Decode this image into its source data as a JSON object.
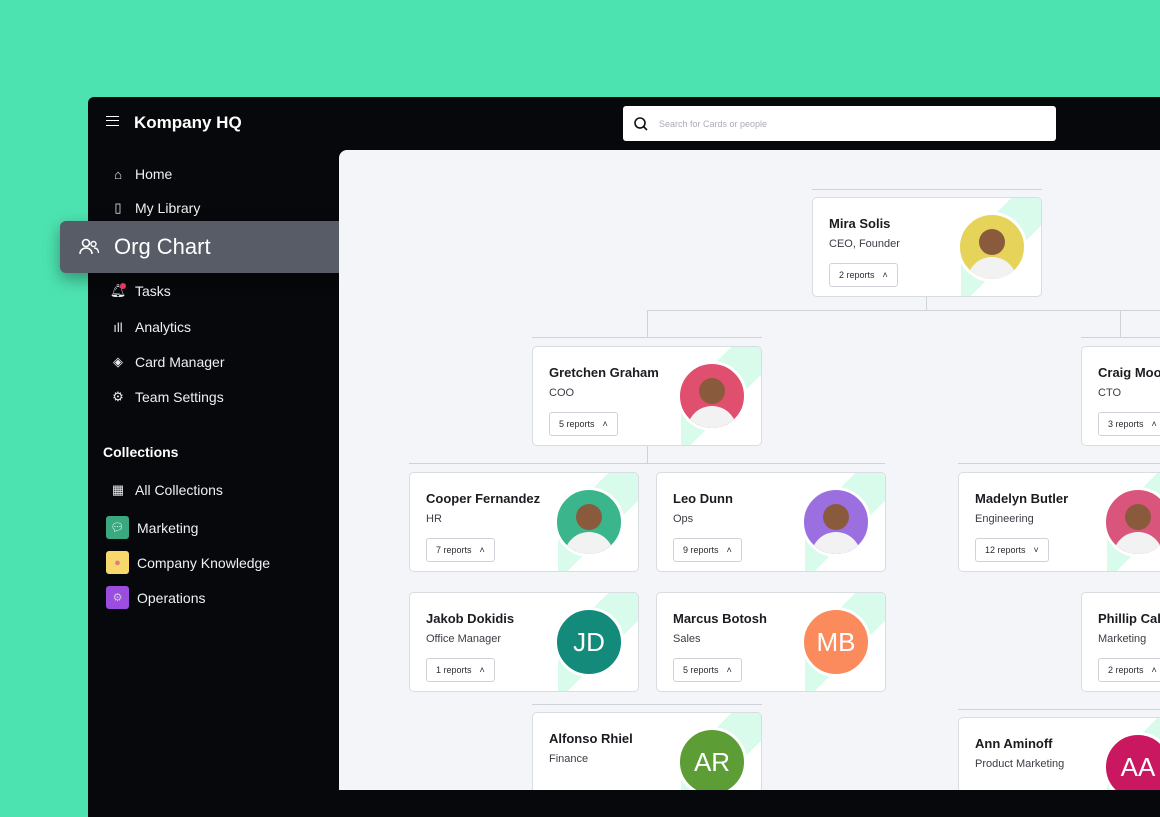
{
  "app": {
    "title": "Kompany HQ"
  },
  "search": {
    "placeholder": "Search for Cards or people"
  },
  "sidebar": {
    "items": [
      {
        "label": "Home",
        "icon": "home-icon"
      },
      {
        "label": "My Library",
        "icon": "bookmark-icon"
      },
      {
        "label": "Org Chart",
        "icon": "users-icon",
        "active": true
      },
      {
        "label": "Tasks",
        "icon": "bell-icon"
      },
      {
        "label": "Analytics",
        "icon": "bar-chart-icon"
      },
      {
        "label": "Card Manager",
        "icon": "layers-icon"
      },
      {
        "label": "Team Settings",
        "icon": "gear-icon"
      }
    ],
    "collections_heading": "Collections",
    "collections": [
      {
        "label": "All Collections",
        "icon": "grid-icon"
      },
      {
        "label": "Marketing",
        "icon": "speech-bubble-icon",
        "color": "#3aa980"
      },
      {
        "label": "Company Knowledge",
        "icon": "brain-icon",
        "color": "#f9d86b"
      },
      {
        "label": "Operations",
        "icon": "gear-icon",
        "color": "#9b4de0"
      }
    ]
  },
  "colors": {
    "background": "#4de3b0",
    "sidebar": "#07080b",
    "accent": "#d8fbeb"
  },
  "org": [
    {
      "name": "Mira Solis",
      "role": "CEO, Founder",
      "reports": "2 reports",
      "chevron": "up",
      "avatar_color": "#e6d35a"
    },
    {
      "name": "Gretchen Graham",
      "role": "COO",
      "reports": "5 reports",
      "chevron": "up",
      "avatar_color": "#e0506e"
    },
    {
      "name": "Craig Moo",
      "role": "CTO",
      "reports": "3 reports",
      "chevron": "up"
    },
    {
      "name": "Cooper Fernandez",
      "role": "HR",
      "reports": "7 reports",
      "chevron": "up",
      "avatar_color": "#3bb58c"
    },
    {
      "name": "Leo Dunn",
      "role": "Ops",
      "reports": "9 reports",
      "chevron": "up",
      "avatar_color": "#9b6fe0"
    },
    {
      "name": "Madelyn Butler",
      "role": "Engineering",
      "reports": "12 reports",
      "chevron": "down",
      "avatar_color": "#d9557c"
    },
    {
      "name": "Jakob Dokidis",
      "role": "Office Manager",
      "reports": "1 reports",
      "chevron": "up",
      "initials": "JD",
      "avatar_color": "#138a7a"
    },
    {
      "name": "Marcus Botosh",
      "role": "Sales",
      "reports": "5 reports",
      "chevron": "up",
      "initials": "MB",
      "avatar_color": "#fb8a5c"
    },
    {
      "name": "Phillip Cal",
      "role": "Marketing",
      "reports": "2 reports",
      "chevron": "up"
    },
    {
      "name": "Alfonso Rhiel",
      "role": "Finance",
      "reports": "",
      "chevron": "up",
      "initials": "AR",
      "avatar_color": "#5c9e35"
    },
    {
      "name": "Ann Aminoff",
      "role": "Product Marketing",
      "reports": "",
      "chevron": "up",
      "initials": "AA",
      "avatar_color": "#c9185f"
    }
  ]
}
